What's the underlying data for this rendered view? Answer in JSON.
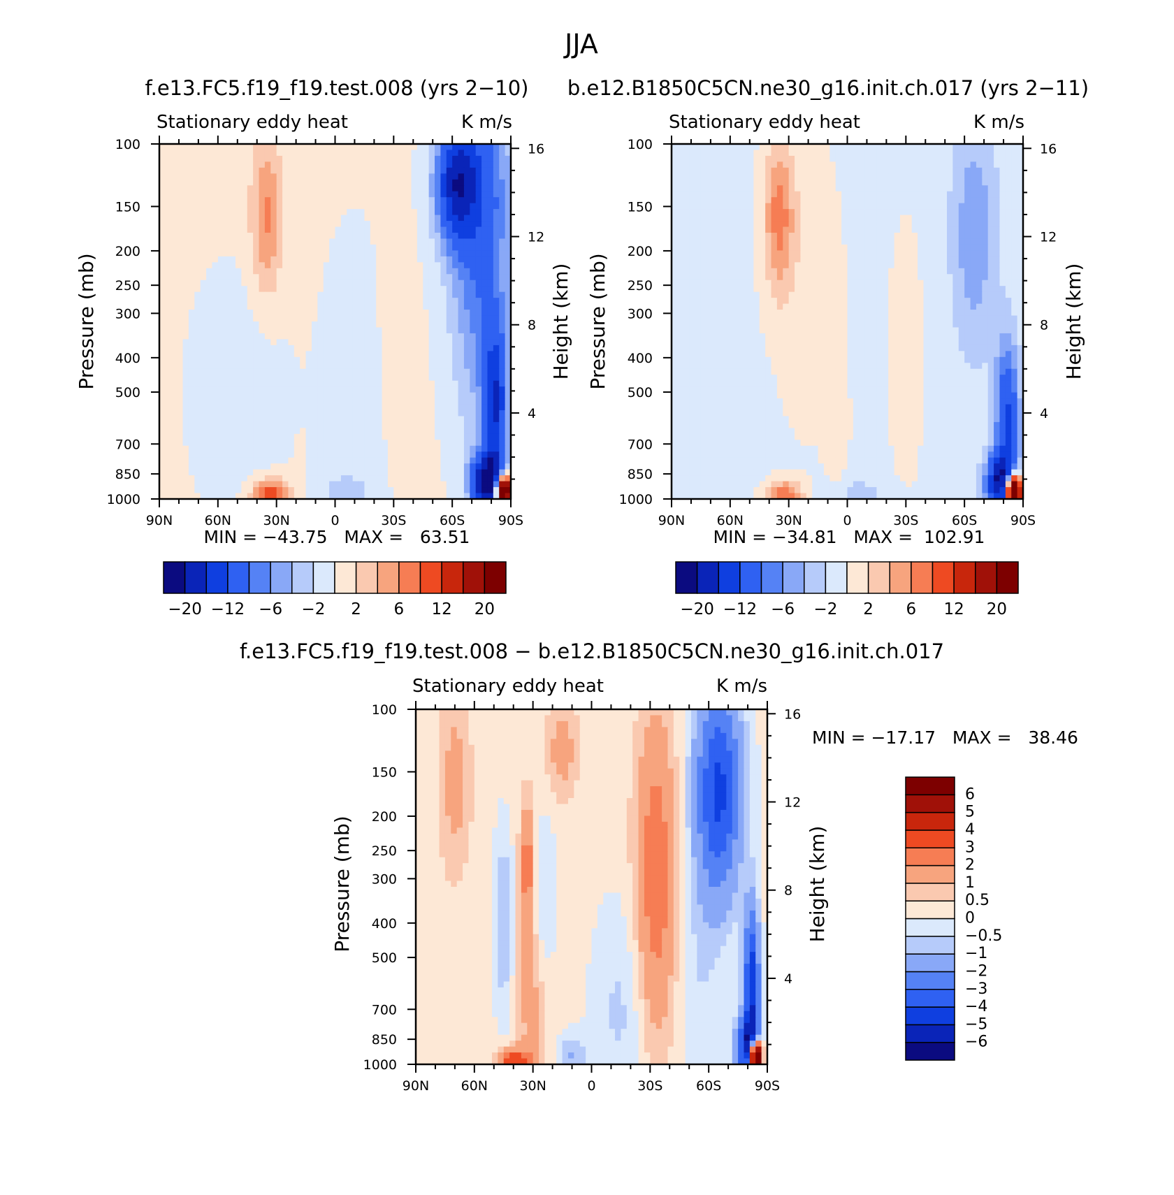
{
  "figure_title": "JJA",
  "chart_data": [
    {
      "id": "p1",
      "type": "contour",
      "case_title": "f.e13.FC5.f19_f19.test.008 (yrs 2−10)",
      "left_title": "Stationary eddy heat",
      "right_title": "K m/s",
      "ylabel": "Pressure (mb)",
      "y2label": "Height (km)",
      "x_ticks": [
        "90N",
        "60N",
        "30N",
        "0",
        "30S",
        "60S",
        "90S"
      ],
      "x_range": [
        90,
        -90
      ],
      "y_ticks": [
        100,
        150,
        200,
        250,
        300,
        400,
        500,
        700,
        850,
        1000
      ],
      "y_range": [
        100,
        1000
      ],
      "height_ticks": [
        4,
        8,
        12,
        16
      ],
      "stats": "MIN = −43.75   MAX =   63.51",
      "colorbar_labels": [
        "−20",
        "−12",
        "−6",
        "−2",
        "2",
        "6",
        "12",
        "20"
      ],
      "colorbar_levels": [
        -20,
        -16,
        -12,
        -8,
        -6,
        -4,
        -2,
        0,
        2,
        4,
        6,
        8,
        12,
        16,
        20
      ],
      "field": {
        "bg": 0.4,
        "blobs": [
          {
            "lat": -75,
            "p": 200,
            "a": -8,
            "wl": 16,
            "wp": 1.2
          },
          {
            "lat": -62,
            "p": 130,
            "a": -14,
            "wl": 10,
            "wp": 0.35
          },
          {
            "lat": -70,
            "p": 120,
            "a": -4,
            "wl": 18,
            "wp": 0.6
          },
          {
            "lat": -82,
            "p": 550,
            "a": -14,
            "wl": 6,
            "wp": 0.5
          },
          {
            "lat": -78,
            "p": 900,
            "a": -22,
            "wl": 8,
            "wp": 0.18
          },
          {
            "lat": -86,
            "p": 950,
            "a": 40,
            "wl": 4,
            "wp": 0.1
          },
          {
            "lat": 35,
            "p": 160,
            "a": 6,
            "wl": 8,
            "wp": 0.5
          },
          {
            "lat": 33,
            "p": 980,
            "a": 10,
            "wl": 9,
            "wp": 0.1
          },
          {
            "lat": 50,
            "p": 500,
            "a": -1.5,
            "wl": 25,
            "wp": 0.8
          },
          {
            "lat": -10,
            "p": 600,
            "a": -1.5,
            "wl": 18,
            "wp": 1.2
          },
          {
            "lat": -5,
            "p": 970,
            "a": -2.5,
            "wl": 14,
            "wp": 0.12
          },
          {
            "lat": -30,
            "p": 300,
            "a": 1.5,
            "wl": 6,
            "wp": 0.8
          }
        ]
      }
    },
    {
      "id": "p2",
      "type": "contour",
      "case_title": "b.e12.B1850C5CN.ne30_g16.init.ch.017 (yrs 2−11)",
      "left_title": "Stationary eddy heat",
      "right_title": "K m/s",
      "ylabel": "Pressure (mb)",
      "y2label": "Height (km)",
      "x_ticks": [
        "90N",
        "60N",
        "30N",
        "0",
        "30S",
        "60S",
        "90S"
      ],
      "x_range": [
        90,
        -90
      ],
      "y_ticks": [
        100,
        150,
        200,
        250,
        300,
        400,
        500,
        700,
        850,
        1000
      ],
      "y_range": [
        100,
        1000
      ],
      "height_ticks": [
        4,
        8,
        12,
        16
      ],
      "stats": "MIN = −34.81   MAX =  102.91",
      "colorbar_labels": [
        "−20",
        "−12",
        "−6",
        "−2",
        "2",
        "6",
        "12",
        "20"
      ],
      "colorbar_levels": [
        -20,
        -16,
        -12,
        -8,
        -6,
        -4,
        -2,
        0,
        2,
        4,
        6,
        8,
        12,
        16,
        20
      ],
      "field": {
        "bg": -0.5,
        "blobs": [
          {
            "lat": -65,
            "p": 180,
            "a": -5,
            "wl": 12,
            "wp": 0.8
          },
          {
            "lat": -82,
            "p": 600,
            "a": -12,
            "wl": 6,
            "wp": 0.5
          },
          {
            "lat": -78,
            "p": 900,
            "a": -18,
            "wl": 7,
            "wp": 0.18
          },
          {
            "lat": -85,
            "p": 950,
            "a": 40,
            "wl": 4,
            "wp": 0.1
          },
          {
            "lat": 35,
            "p": 160,
            "a": 7,
            "wl": 8,
            "wp": 0.5
          },
          {
            "lat": 32,
            "p": 980,
            "a": 8,
            "wl": 9,
            "wp": 0.1
          },
          {
            "lat": 20,
            "p": 250,
            "a": 1.5,
            "wl": 18,
            "wp": 1.0
          },
          {
            "lat": -30,
            "p": 400,
            "a": 1.2,
            "wl": 10,
            "wp": 1.0
          },
          {
            "lat": 5,
            "p": 700,
            "a": 1.2,
            "wl": 6,
            "wp": 0.6
          },
          {
            "lat": -5,
            "p": 980,
            "a": -2.5,
            "wl": 14,
            "wp": 0.12
          }
        ]
      }
    },
    {
      "id": "p3",
      "type": "contour",
      "case_title": "f.e13.FC5.f19_f19.test.008 − b.e12.B1850C5CN.ne30_g16.init.ch.017",
      "left_title": "Stationary eddy heat",
      "right_title": "K m/s",
      "ylabel": "Pressure (mb)",
      "y2label": "Height (km)",
      "x_ticks": [
        "90N",
        "60N",
        "30N",
        "0",
        "30S",
        "60S",
        "90S"
      ],
      "x_range": [
        90,
        -90
      ],
      "y_ticks": [
        100,
        150,
        200,
        250,
        300,
        400,
        500,
        700,
        850,
        1000
      ],
      "y_range": [
        100,
        1000
      ],
      "height_ticks": [
        4,
        8,
        12,
        16
      ],
      "stats": "MIN = −17.17   MAX =   38.46",
      "colorbar_labels": [
        "6",
        "5",
        "4",
        "3",
        "2",
        "1",
        "0.5",
        "0",
        "−0.5",
        "−1",
        "−2",
        "−3",
        "−4",
        "−5",
        "−6"
      ],
      "colorbar_levels": [
        -6,
        -5,
        -4,
        -3,
        -2,
        -1,
        -0.5,
        0,
        0.5,
        1,
        2,
        3,
        4,
        5,
        6
      ],
      "field": {
        "bg": 0.2,
        "blobs": [
          {
            "lat": -65,
            "p": 170,
            "a": -4.5,
            "wl": 12,
            "wp": 0.7
          },
          {
            "lat": -82,
            "p": 600,
            "a": -5,
            "wl": 4,
            "wp": 0.5
          },
          {
            "lat": -80,
            "p": 900,
            "a": -5,
            "wl": 6,
            "wp": 0.2
          },
          {
            "lat": -84,
            "p": 950,
            "a": 14,
            "wl": 3,
            "wp": 0.1
          },
          {
            "lat": -33,
            "p": 300,
            "a": 2.6,
            "wl": 10,
            "wp": 1.0
          },
          {
            "lat": 30,
            "p": 600,
            "a": 1.2,
            "wl": 8,
            "wp": 1.0
          },
          {
            "lat": 33,
            "p": 270,
            "a": 2.2,
            "wl": 3,
            "wp": 0.35
          },
          {
            "lat": 40,
            "p": 980,
            "a": 3.5,
            "wl": 8,
            "wp": 0.08
          },
          {
            "lat": 45,
            "p": 400,
            "a": -1.3,
            "wl": 5,
            "wp": 0.6
          },
          {
            "lat": 25,
            "p": 350,
            "a": -1.2,
            "wl": 6,
            "wp": 0.6
          },
          {
            "lat": 70,
            "p": 160,
            "a": 1.1,
            "wl": 8,
            "wp": 0.6
          },
          {
            "lat": 15,
            "p": 130,
            "a": 1.2,
            "wl": 8,
            "wp": 0.3
          },
          {
            "lat": -15,
            "p": 700,
            "a": -0.8,
            "wl": 15,
            "wp": 0.7
          },
          {
            "lat": -55,
            "p": 600,
            "a": -0.6,
            "wl": 12,
            "wp": 0.8
          },
          {
            "lat": 10,
            "p": 950,
            "a": -1.2,
            "wl": 8,
            "wp": 0.15
          }
        ]
      }
    }
  ],
  "palette": [
    "#0b0b80",
    "#0a24b8",
    "#0f3fe0",
    "#2f61f2",
    "#5582f5",
    "#89a8f7",
    "#b6cbfa",
    "#dbe9fc",
    "#fde8d6",
    "#fac9b0",
    "#f7a47e",
    "#f67d54",
    "#ee4a22",
    "#c8260c",
    "#a01108",
    "#7d0000"
  ]
}
